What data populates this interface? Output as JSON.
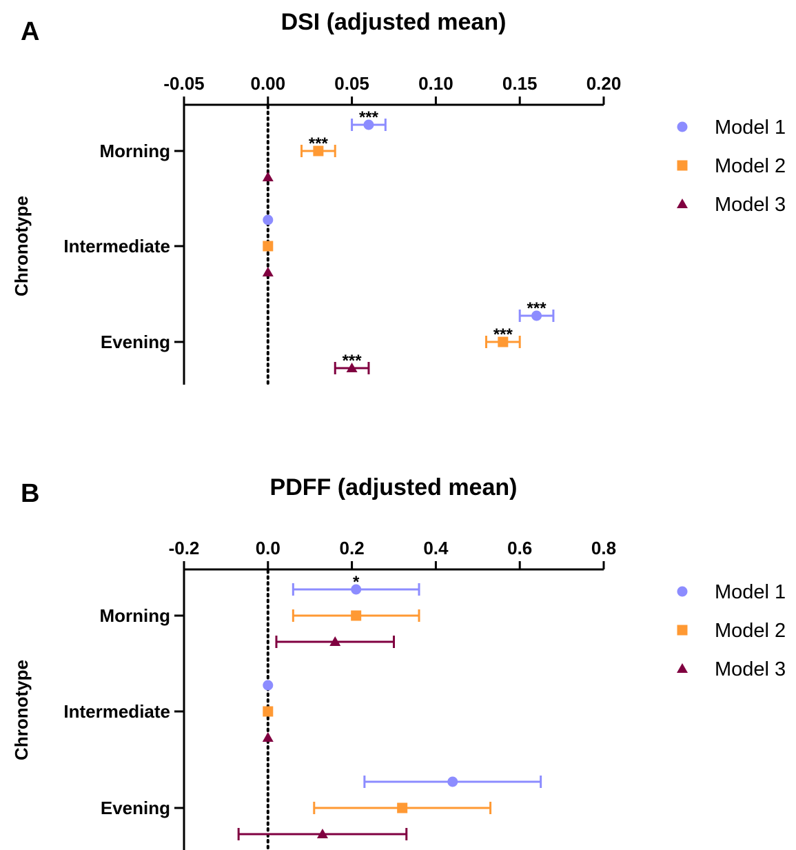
{
  "chart_data": [
    {
      "panel": "A",
      "type": "scatter",
      "title": "DSI (adjusted mean)",
      "ylabel": "Chronotype",
      "xlim": [
        -0.05,
        0.2
      ],
      "xticks": [
        "-0.05",
        "0.00",
        "0.05",
        "0.10",
        "0.15",
        "0.20"
      ],
      "xtick_values": [
        -0.05,
        0.0,
        0.05,
        0.1,
        0.15,
        0.2
      ],
      "categories": [
        "Morning",
        "Intermediate",
        "Evening"
      ],
      "reference_line_x": 0,
      "series": [
        {
          "name": "Model 1",
          "color": "#8c8cff",
          "marker": "circle",
          "points": [
            {
              "category": "Morning",
              "value": 0.06,
              "lo": 0.05,
              "hi": 0.07,
              "sig": "***"
            },
            {
              "category": "Intermediate",
              "value": 0.0,
              "lo": 0.0,
              "hi": 0.0,
              "sig": ""
            },
            {
              "category": "Evening",
              "value": 0.16,
              "lo": 0.15,
              "hi": 0.17,
              "sig": "***"
            }
          ]
        },
        {
          "name": "Model 2",
          "color": "#ff9933",
          "marker": "square",
          "points": [
            {
              "category": "Morning",
              "value": 0.03,
              "lo": 0.02,
              "hi": 0.04,
              "sig": "***"
            },
            {
              "category": "Intermediate",
              "value": 0.0,
              "lo": 0.0,
              "hi": 0.0,
              "sig": ""
            },
            {
              "category": "Evening",
              "value": 0.14,
              "lo": 0.13,
              "hi": 0.15,
              "sig": "***"
            }
          ]
        },
        {
          "name": "Model 3",
          "color": "#800040",
          "marker": "triangle",
          "points": [
            {
              "category": "Morning",
              "value": 0.0,
              "lo": 0.0,
              "hi": 0.0,
              "sig": ""
            },
            {
              "category": "Intermediate",
              "value": 0.0,
              "lo": 0.0,
              "hi": 0.0,
              "sig": ""
            },
            {
              "category": "Evening",
              "value": 0.05,
              "lo": 0.04,
              "hi": 0.06,
              "sig": "***"
            }
          ]
        }
      ],
      "legend": "right"
    },
    {
      "panel": "B",
      "type": "scatter",
      "title": "PDFF (adjusted mean)",
      "ylabel": "Chronotype",
      "xlim": [
        -0.2,
        0.8
      ],
      "xticks": [
        "-0.2",
        "0.0",
        "0.2",
        "0.4",
        "0.6",
        "0.8"
      ],
      "xtick_values": [
        -0.2,
        0.0,
        0.2,
        0.4,
        0.6,
        0.8
      ],
      "categories": [
        "Morning",
        "Intermediate",
        "Evening"
      ],
      "reference_line_x": 0,
      "series": [
        {
          "name": "Model 1",
          "color": "#8c8cff",
          "marker": "circle",
          "points": [
            {
              "category": "Morning",
              "value": 0.21,
              "lo": 0.06,
              "hi": 0.36,
              "sig": "*"
            },
            {
              "category": "Intermediate",
              "value": 0.0,
              "lo": 0.0,
              "hi": 0.0,
              "sig": ""
            },
            {
              "category": "Evening",
              "value": 0.44,
              "lo": 0.23,
              "hi": 0.65,
              "sig": ""
            }
          ]
        },
        {
          "name": "Model 2",
          "color": "#ff9933",
          "marker": "square",
          "points": [
            {
              "category": "Morning",
              "value": 0.21,
              "lo": 0.06,
              "hi": 0.36,
              "sig": ""
            },
            {
              "category": "Intermediate",
              "value": 0.0,
              "lo": 0.0,
              "hi": 0.0,
              "sig": ""
            },
            {
              "category": "Evening",
              "value": 0.32,
              "lo": 0.11,
              "hi": 0.53,
              "sig": ""
            }
          ]
        },
        {
          "name": "Model 3",
          "color": "#800040",
          "marker": "triangle",
          "points": [
            {
              "category": "Morning",
              "value": 0.16,
              "lo": 0.02,
              "hi": 0.3,
              "sig": ""
            },
            {
              "category": "Intermediate",
              "value": 0.0,
              "lo": 0.0,
              "hi": 0.0,
              "sig": ""
            },
            {
              "category": "Evening",
              "value": 0.13,
              "lo": -0.07,
              "hi": 0.33,
              "sig": ""
            }
          ]
        }
      ],
      "legend": "right"
    }
  ]
}
